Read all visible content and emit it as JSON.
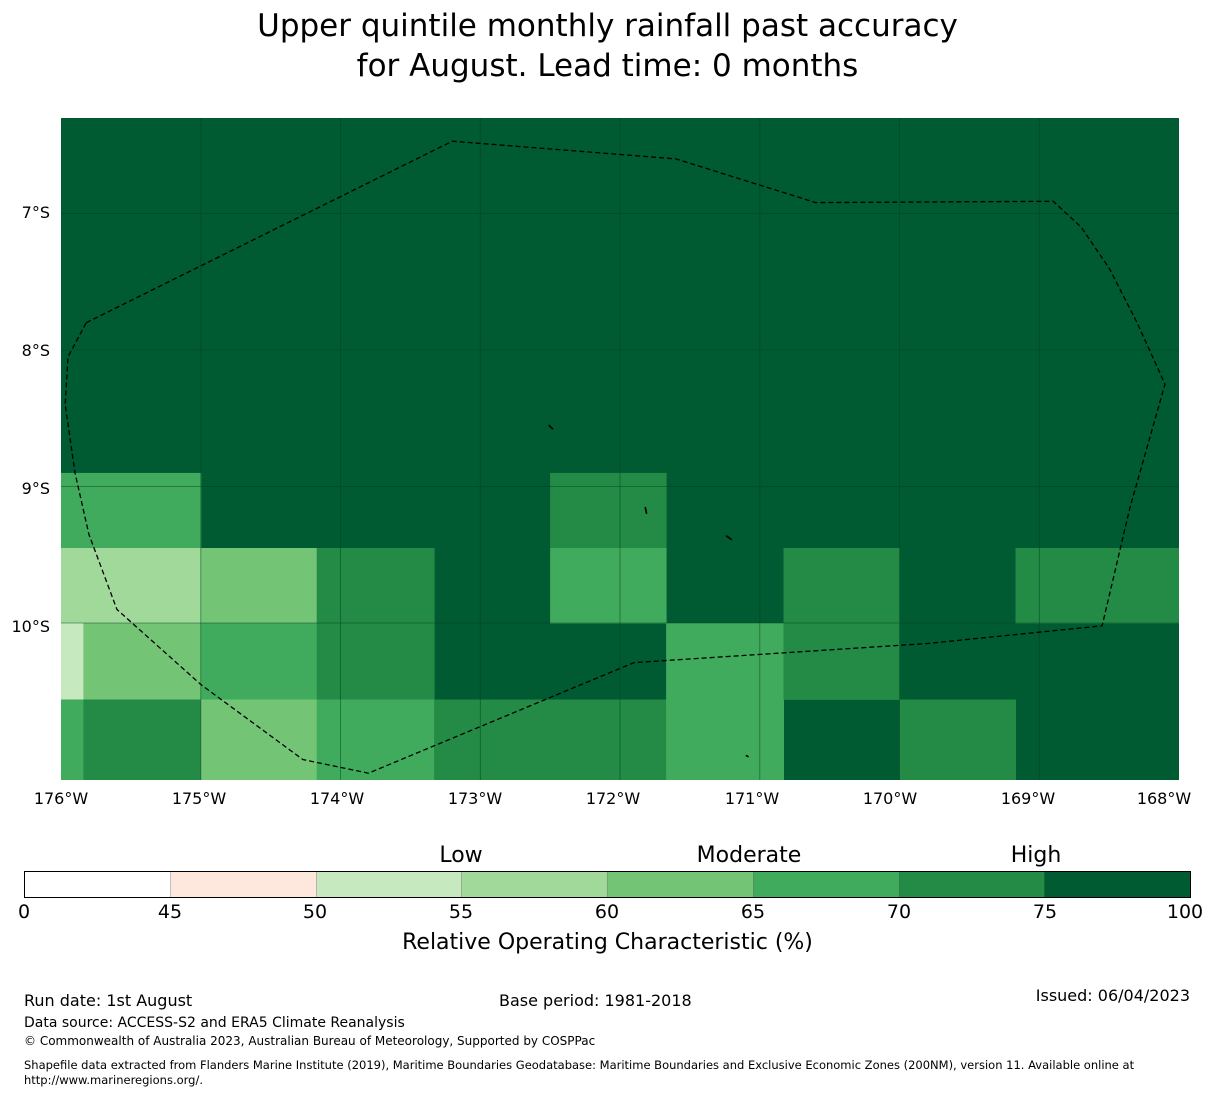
{
  "title_line1": "Upper quintile monthly rainfall past accuracy",
  "title_line2": "for August. Lead time: 0 months",
  "colors": {
    "water_high": "#005a32",
    "grid": "#00401f",
    "boundary": "#000000"
  },
  "map": {
    "lon_range": [
      -176,
      -168
    ],
    "lat_range": [
      -11.15,
      -6.3
    ],
    "lat_ticks": [
      "7°S",
      "8°S",
      "9°S",
      "10°S"
    ],
    "lon_ticks": [
      "176°W",
      "175°W",
      "174°W",
      "173°W",
      "172°W",
      "171°W",
      "170°W",
      "169°W",
      "168°W"
    ],
    "grid_lat": [
      -7,
      -8,
      -9,
      -10
    ],
    "grid_lon": [
      -175,
      -174,
      -173,
      -172,
      -171,
      -170,
      -169
    ],
    "default_cell_percent": 80,
    "cells": [
      {
        "lon": [
          -176,
          -175.84
        ],
        "lat": [
          -9.45,
          -8.9
        ],
        "percent": 67
      },
      {
        "lon": [
          -175.84,
          -175
        ],
        "lat": [
          -9.45,
          -8.9
        ],
        "percent": 67
      },
      {
        "lon": [
          -172.5,
          -171.67
        ],
        "lat": [
          -9.45,
          -8.9
        ],
        "percent": 72
      },
      {
        "lon": [
          -176,
          -175
        ],
        "lat": [
          -10,
          -9.45
        ],
        "percent": 57
      },
      {
        "lon": [
          -175,
          -174.17
        ],
        "lat": [
          -10,
          -9.45
        ],
        "percent": 62
      },
      {
        "lon": [
          -174.17,
          -173.33
        ],
        "lat": [
          -10,
          -9.45
        ],
        "percent": 72
      },
      {
        "lon": [
          -172.5,
          -171.67
        ],
        "lat": [
          -10,
          -9.45
        ],
        "percent": 67
      },
      {
        "lon": [
          -170.83,
          -170
        ],
        "lat": [
          -10,
          -9.45
        ],
        "percent": 72
      },
      {
        "lon": [
          -169.17,
          -168
        ],
        "lat": [
          -10,
          -9.45
        ],
        "percent": 72
      },
      {
        "lon": [
          -176,
          -175.84
        ],
        "lat": [
          -10.56,
          -10
        ],
        "percent": 52
      },
      {
        "lon": [
          -175.84,
          -175
        ],
        "lat": [
          -10.56,
          -10
        ],
        "percent": 62
      },
      {
        "lon": [
          -175,
          -174.17
        ],
        "lat": [
          -10.56,
          -10
        ],
        "percent": 67
      },
      {
        "lon": [
          -174.17,
          -173.33
        ],
        "lat": [
          -10.56,
          -10
        ],
        "percent": 72
      },
      {
        "lon": [
          -171.67,
          -170.83
        ],
        "lat": [
          -10.56,
          -10
        ],
        "percent": 67
      },
      {
        "lon": [
          -170.83,
          -170
        ],
        "lat": [
          -10.56,
          -10
        ],
        "percent": 72
      },
      {
        "lon": [
          -176,
          -175.84
        ],
        "lat": [
          -11.15,
          -10.56
        ],
        "percent": 67
      },
      {
        "lon": [
          -175.84,
          -175
        ],
        "lat": [
          -11.15,
          -10.56
        ],
        "percent": 72
      },
      {
        "lon": [
          -175,
          -174.17
        ],
        "lat": [
          -11.15,
          -10.56
        ],
        "percent": 62
      },
      {
        "lon": [
          -174.17,
          -173.33
        ],
        "lat": [
          -11.15,
          -10.56
        ],
        "percent": 67
      },
      {
        "lon": [
          -173.33,
          -171.67
        ],
        "lat": [
          -11.15,
          -10.56
        ],
        "percent": 72
      },
      {
        "lon": [
          -171.67,
          -170.83
        ],
        "lat": [
          -11.15,
          -10.56
        ],
        "percent": 67
      },
      {
        "lon": [
          -170,
          -169.17
        ],
        "lat": [
          -11.15,
          -10.56
        ],
        "percent": 72
      }
    ],
    "boundary": [
      [
        -175.82,
        -7.8
      ],
      [
        -173.2,
        -6.47
      ],
      [
        -171.6,
        -6.6
      ],
      [
        -170.6,
        -6.92
      ],
      [
        -168.9,
        -6.91
      ],
      [
        -168.7,
        -7.1
      ],
      [
        -168.5,
        -7.4
      ],
      [
        -168.3,
        -7.8
      ],
      [
        -168.1,
        -8.25
      ],
      [
        -168.35,
        -9.15
      ],
      [
        -168.55,
        -10.02
      ],
      [
        -169.8,
        -10.15
      ],
      [
        -171.9,
        -10.29
      ],
      [
        -173.8,
        -11.1
      ],
      [
        -174.27,
        -11.0
      ],
      [
        -175.0,
        -10.45
      ],
      [
        -175.6,
        -9.9
      ],
      [
        -175.8,
        -9.35
      ],
      [
        -175.9,
        -8.9
      ],
      [
        -175.97,
        -8.4
      ],
      [
        -175.95,
        -8.05
      ],
      [
        -175.82,
        -7.8
      ]
    ],
    "islands": [
      {
        "lon": [
          -172.51,
          -172.48
        ],
        "lat": [
          -8.55,
          -8.58
        ]
      },
      {
        "lon": [
          -171.82,
          -171.81
        ],
        "lat": [
          -9.15,
          -9.2
        ]
      },
      {
        "lon": [
          -171.24,
          -171.2
        ],
        "lat": [
          -9.36,
          -9.39
        ]
      },
      {
        "lon": [
          -171.1,
          -171.08
        ],
        "lat": [
          -10.97,
          -10.98
        ]
      }
    ]
  },
  "colorbar": {
    "bounds": [
      0,
      45,
      50,
      55,
      60,
      65,
      70,
      75,
      100
    ],
    "tick_labels": [
      "0",
      "45",
      "50",
      "55",
      "60",
      "65",
      "70",
      "75",
      "100"
    ],
    "colors": [
      "#ffffff",
      "#fee8de",
      "#c7e9c0",
      "#a1d99b",
      "#74c476",
      "#41ab5d",
      "#238b45",
      "#005a32"
    ],
    "categories": [
      {
        "label": "Low",
        "at_bin": 3
      },
      {
        "label": "Moderate",
        "at_bin": 5
      },
      {
        "label": "High",
        "at_bin": 7
      }
    ],
    "label": "Relative Operating Characteristic (%)"
  },
  "footer": {
    "run_date": "Run date: 1st August",
    "base_period": "Base period: 1981-2018",
    "issued": "Issued: 06/04/2023",
    "data_source": "Data source: ACCESS-S2 and ERA5 Climate Reanalysis",
    "copyright": "© Commonwealth of Australia 2023, Australian Bureau of Meteorology, Supported by COSPPac",
    "shapefile_line1": "Shapefile data extracted from Flanders Marine Institute (2019), Maritime Boundaries Geodatabase: Maritime Boundaries and Exclusive Economic Zones (200NM), version 11. Available online at",
    "shapefile_line2": "http://www.marineregions.org/."
  }
}
